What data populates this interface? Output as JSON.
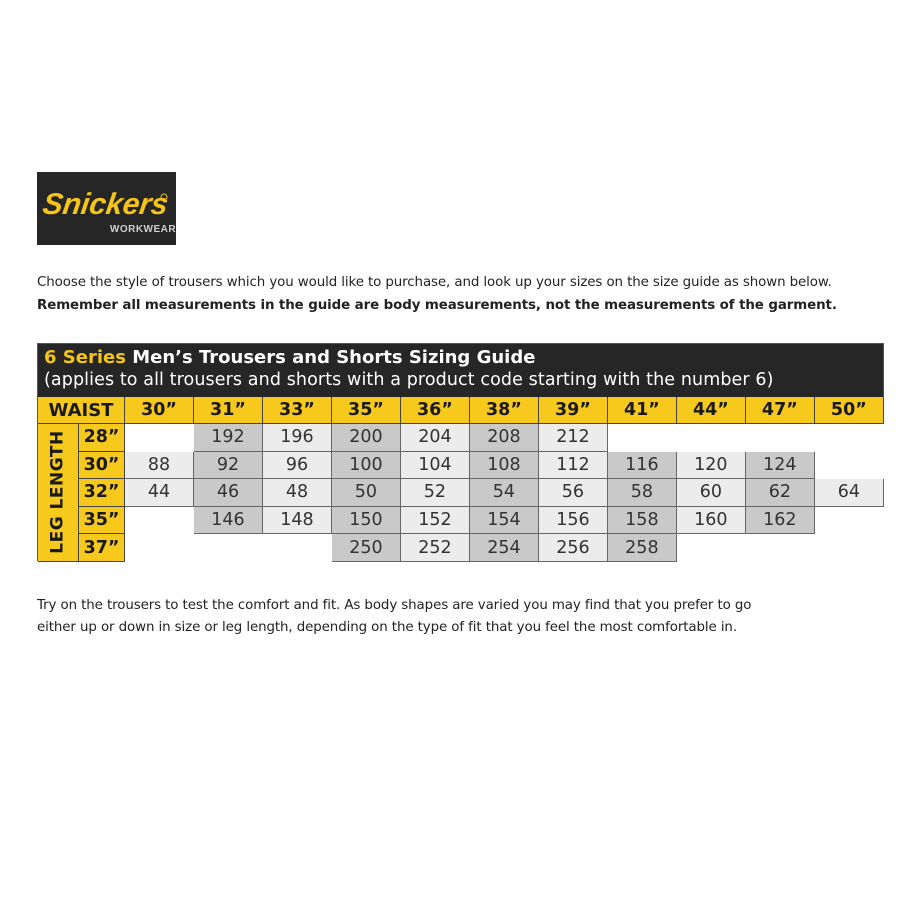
{
  "logo": {
    "brand": "Snickers",
    "sub": "WORKWEAR",
    "yellow": "#f5c518",
    "dark": "#262626"
  },
  "intro": {
    "line1": "Choose the style of trousers which you would like to purchase, and look up your sizes on the size guide as shown below.",
    "line2": "Remember all measurements in the guide are body measurements, not the measurements of the garment."
  },
  "table": {
    "title_series": "6 Series",
    "title_rest": "Men’s Trousers and Shorts Sizing Guide",
    "subtitle": "(applies to all trousers and shorts with a product code starting with the number 6)",
    "waist_label": "WAIST",
    "leg_label": "LEG LENGTH",
    "waists": [
      "30”",
      "31”",
      "33”",
      "35”",
      "36”",
      "38”",
      "39”",
      "41”",
      "44”",
      "47”",
      "50”"
    ],
    "rows": [
      {
        "leg": "28”",
        "values": [
          null,
          "192",
          "196",
          "200",
          "204",
          "208",
          "212",
          null,
          null,
          null,
          null
        ]
      },
      {
        "leg": "30”",
        "values": [
          "88",
          "92",
          "96",
          "100",
          "104",
          "108",
          "112",
          "116",
          "120",
          "124",
          null
        ]
      },
      {
        "leg": "32”",
        "values": [
          "44",
          "46",
          "48",
          "50",
          "52",
          "54",
          "56",
          "58",
          "60",
          "62",
          "64"
        ]
      },
      {
        "leg": "35”",
        "values": [
          null,
          "146",
          "148",
          "150",
          "152",
          "154",
          "156",
          "158",
          "160",
          "162",
          null
        ]
      },
      {
        "leg": "37”",
        "values": [
          null,
          null,
          null,
          "250",
          "252",
          "254",
          "256",
          "258",
          null,
          null,
          null
        ]
      }
    ]
  },
  "outro": {
    "line1": "Try on the trousers to test the comfort and fit. As body shapes are varied you may find that you prefer to go",
    "line2": "either up or down in size or leg length, depending on the type of fit that you feel the most comfortable in."
  }
}
